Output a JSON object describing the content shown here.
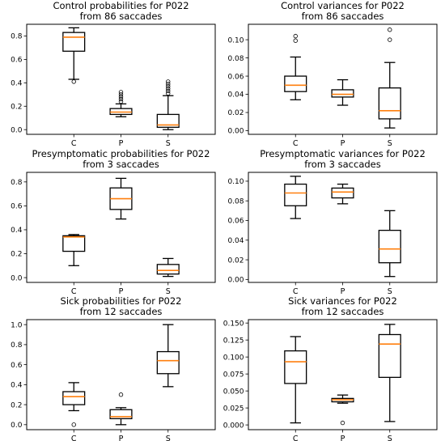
{
  "chart_data": [
    {
      "type": "boxplot",
      "title": [
        "Control probabilities for P022",
        "from 86 saccades"
      ],
      "categories": [
        "C",
        "P",
        "S"
      ],
      "ylim": [
        -0.04,
        0.9
      ],
      "yticks": [
        0.0,
        0.2,
        0.4,
        0.6,
        0.8
      ],
      "ytick_labels": [
        "0.0",
        "0.2",
        "0.4",
        "0.6",
        "0.8"
      ],
      "boxes": [
        {
          "whislo": 0.43,
          "q1": 0.67,
          "med": 0.79,
          "q3": 0.83,
          "whishi": 0.87,
          "fliers": [
            0.41
          ]
        },
        {
          "whislo": 0.11,
          "q1": 0.13,
          "med": 0.15,
          "q3": 0.18,
          "whishi": 0.22,
          "fliers": [
            0.24,
            0.26,
            0.28,
            0.3,
            0.32
          ]
        },
        {
          "whislo": 0.0,
          "q1": 0.02,
          "med": 0.04,
          "q3": 0.13,
          "whishi": 0.29,
          "fliers": [
            0.31,
            0.33,
            0.35,
            0.37,
            0.39,
            0.41
          ]
        }
      ]
    },
    {
      "type": "boxplot",
      "title": [
        "Control variances for P022",
        "from 86 saccades"
      ],
      "categories": [
        "C",
        "P",
        "S"
      ],
      "ylim": [
        -0.004,
        0.117
      ],
      "yticks": [
        0.0,
        0.02,
        0.04,
        0.06,
        0.08,
        0.1
      ],
      "ytick_labels": [
        "0.00",
        "0.02",
        "0.04",
        "0.06",
        "0.08",
        "0.10"
      ],
      "boxes": [
        {
          "whislo": 0.034,
          "q1": 0.043,
          "med": 0.05,
          "q3": 0.06,
          "whishi": 0.081,
          "fliers": [
            0.099,
            0.104
          ]
        },
        {
          "whislo": 0.028,
          "q1": 0.037,
          "med": 0.04,
          "q3": 0.045,
          "whishi": 0.056,
          "fliers": []
        },
        {
          "whislo": 0.003,
          "q1": 0.013,
          "med": 0.022,
          "q3": 0.047,
          "whishi": 0.075,
          "fliers": [
            0.1,
            0.111
          ]
        }
      ]
    },
    {
      "type": "boxplot",
      "title": [
        "Presymptomatic probabilities for P022",
        "from 3 saccades"
      ],
      "categories": [
        "C",
        "P",
        "S"
      ],
      "ylim": [
        -0.04,
        0.88
      ],
      "yticks": [
        0.0,
        0.2,
        0.4,
        0.6,
        0.8
      ],
      "ytick_labels": [
        "0.0",
        "0.2",
        "0.4",
        "0.6",
        "0.8"
      ],
      "boxes": [
        {
          "whislo": 0.1,
          "q1": 0.22,
          "med": 0.34,
          "q3": 0.35,
          "whishi": 0.36,
          "fliers": []
        },
        {
          "whislo": 0.49,
          "q1": 0.57,
          "med": 0.66,
          "q3": 0.75,
          "whishi": 0.83,
          "fliers": []
        },
        {
          "whislo": 0.01,
          "q1": 0.03,
          "med": 0.06,
          "q3": 0.11,
          "whishi": 0.16,
          "fliers": []
        }
      ]
    },
    {
      "type": "boxplot",
      "title": [
        "Presymptomatic variances for P022",
        "from 3 saccades"
      ],
      "categories": [
        "C",
        "P",
        "S"
      ],
      "ylim": [
        -0.003,
        0.109
      ],
      "yticks": [
        0.0,
        0.02,
        0.04,
        0.06,
        0.08,
        0.1
      ],
      "ytick_labels": [
        "0.00",
        "0.02",
        "0.04",
        "0.06",
        "0.08",
        "0.10"
      ],
      "boxes": [
        {
          "whislo": 0.062,
          "q1": 0.075,
          "med": 0.088,
          "q3": 0.097,
          "whishi": 0.105,
          "fliers": []
        },
        {
          "whislo": 0.077,
          "q1": 0.083,
          "med": 0.089,
          "q3": 0.093,
          "whishi": 0.097,
          "fliers": []
        },
        {
          "whislo": 0.003,
          "q1": 0.017,
          "med": 0.031,
          "q3": 0.05,
          "whishi": 0.07,
          "fliers": []
        }
      ]
    },
    {
      "type": "boxplot",
      "title": [
        "Sick probabilities for P022",
        "from 12 saccades"
      ],
      "categories": [
        "C",
        "P",
        "S"
      ],
      "ylim": [
        -0.05,
        1.05
      ],
      "yticks": [
        0.0,
        0.2,
        0.4,
        0.6,
        0.8,
        1.0
      ],
      "ytick_labels": [
        "0.0",
        "0.2",
        "0.4",
        "0.6",
        "0.8",
        "1.0"
      ],
      "boxes": [
        {
          "whislo": 0.14,
          "q1": 0.2,
          "med": 0.28,
          "q3": 0.33,
          "whishi": 0.42,
          "fliers": [
            0.0
          ]
        },
        {
          "whislo": 0.0,
          "q1": 0.06,
          "med": 0.08,
          "q3": 0.15,
          "whishi": 0.17,
          "fliers": [
            0.3
          ]
        },
        {
          "whislo": 0.38,
          "q1": 0.51,
          "med": 0.64,
          "q3": 0.73,
          "whishi": 1.0,
          "fliers": []
        }
      ]
    },
    {
      "type": "boxplot",
      "title": [
        "Sick variances for P022",
        "from 12 saccades"
      ],
      "categories": [
        "C",
        "P",
        "S"
      ],
      "ylim": [
        -0.007,
        0.155
      ],
      "yticks": [
        0.0,
        0.025,
        0.05,
        0.075,
        0.1,
        0.125,
        0.15
      ],
      "ytick_labels": [
        "0.000",
        "0.025",
        "0.050",
        "0.075",
        "0.100",
        "0.125",
        "0.150"
      ],
      "boxes": [
        {
          "whislo": 0.003,
          "q1": 0.061,
          "med": 0.093,
          "q3": 0.109,
          "whishi": 0.13,
          "fliers": []
        },
        {
          "whislo": 0.032,
          "q1": 0.034,
          "med": 0.037,
          "q3": 0.039,
          "whishi": 0.044,
          "fliers": [
            0.003
          ]
        },
        {
          "whislo": 0.005,
          "q1": 0.07,
          "med": 0.119,
          "q3": 0.133,
          "whishi": 0.148,
          "fliers": []
        }
      ]
    }
  ],
  "colors": {
    "box": "#000000",
    "median": "#ff7f0e"
  }
}
